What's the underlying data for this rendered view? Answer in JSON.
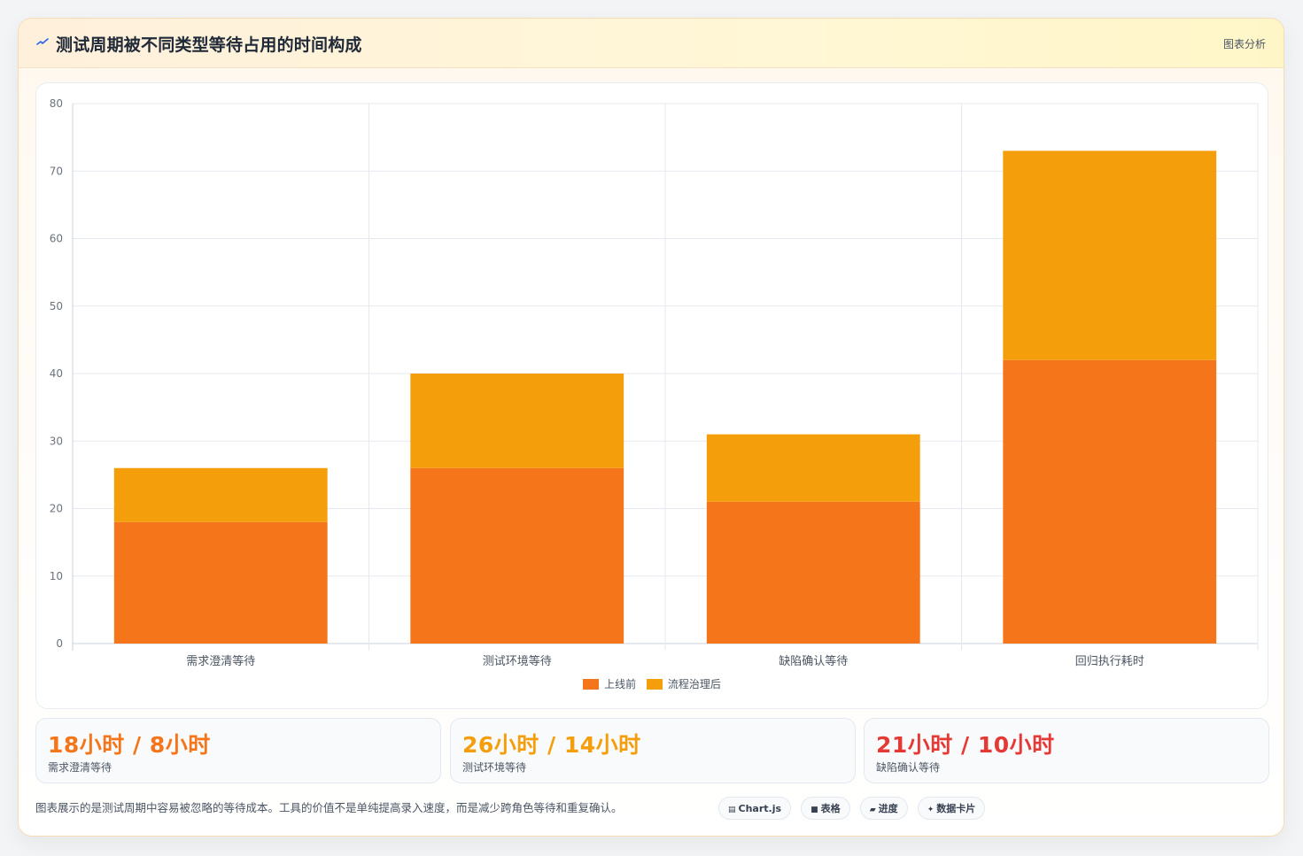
{
  "header": {
    "title": "测试周期被不同类型等待占用的时间构成",
    "icon": "spark-icon",
    "action_label": "图表分析"
  },
  "colors": {
    "series_before": "#f5761a",
    "series_after": "#f59e0b",
    "stat_orange": "#f5761a",
    "stat_amber": "#f59e0b",
    "stat_red": "#e53935"
  },
  "chart_data": {
    "type": "bar",
    "stacked": true,
    "categories": [
      "需求澄清等待",
      "测试环境等待",
      "缺陷确认等待",
      "回归执行耗时"
    ],
    "series": [
      {
        "name": "上线前",
        "values": [
          18,
          26,
          21,
          42
        ],
        "color": "#f5761a"
      },
      {
        "name": "流程治理后",
        "values": [
          8,
          14,
          10,
          31
        ],
        "color": "#f59e0b"
      }
    ],
    "ylim": [
      0,
      80
    ],
    "yticks": [
      0,
      10,
      20,
      30,
      40,
      50,
      60,
      70,
      80
    ],
    "grid": true,
    "legend_position": "bottom"
  },
  "stats": [
    {
      "value": "18小时 / 8小时",
      "label": "需求澄清等待",
      "color": "#f5761a"
    },
    {
      "value": "26小时 / 14小时",
      "label": "测试环境等待",
      "color": "#f59e0b"
    },
    {
      "value": "21小时 / 10小时",
      "label": "缺陷确认等待",
      "color": "#e53935"
    }
  ],
  "footer": {
    "note": "图表展示的是测试周期中容易被忽略的等待成本。工具的价值不是单纯提高录入速度，而是减少跨角色等待和重复确认。",
    "chips": [
      {
        "icon": "chart-icon",
        "glyph": "▤",
        "label": "Chart.js"
      },
      {
        "icon": "table-icon",
        "glyph": "■",
        "label": "表格"
      },
      {
        "icon": "progress-icon",
        "glyph": "▰",
        "label": "进度"
      },
      {
        "icon": "card-icon",
        "glyph": "✦",
        "label": "数据卡片"
      }
    ]
  }
}
